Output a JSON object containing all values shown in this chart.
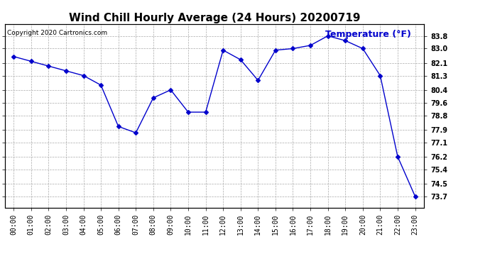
{
  "title": "Wind Chill Hourly Average (24 Hours) 20200719",
  "copyright_text": "Copyright 2020 Cartronics.com",
  "legend_label": "Temperature (°F)",
  "hours": [
    "00:00",
    "01:00",
    "02:00",
    "03:00",
    "04:00",
    "05:00",
    "06:00",
    "07:00",
    "08:00",
    "09:00",
    "10:00",
    "11:00",
    "12:00",
    "13:00",
    "14:00",
    "15:00",
    "16:00",
    "17:00",
    "18:00",
    "19:00",
    "20:00",
    "21:00",
    "22:00",
    "23:00"
  ],
  "values": [
    82.5,
    82.2,
    81.9,
    81.6,
    81.3,
    80.7,
    78.1,
    77.7,
    79.9,
    80.4,
    79.0,
    79.0,
    82.9,
    82.3,
    81.0,
    82.9,
    83.0,
    83.2,
    83.8,
    83.5,
    83.0,
    81.3,
    76.2,
    73.7
  ],
  "line_color": "#0000CC",
  "marker": "D",
  "marker_size": 3,
  "grid_color": "#AAAAAA",
  "background_color": "#FFFFFF",
  "ylim_min": 73.0,
  "ylim_max": 84.55,
  "yticks": [
    83.8,
    83.0,
    82.1,
    81.3,
    80.4,
    79.6,
    78.8,
    77.9,
    77.1,
    76.2,
    75.4,
    74.5,
    73.7
  ],
  "ytick_labels": [
    "83.8",
    "83.0",
    "82.1",
    "81.3",
    "80.4",
    "79.6",
    "78.8",
    "77.9",
    "77.1",
    "76.2",
    "75.4",
    "74.5",
    "73.7"
  ],
  "title_fontsize": 11,
  "copyright_fontsize": 6.5,
  "legend_fontsize": 9,
  "tick_fontsize": 7
}
